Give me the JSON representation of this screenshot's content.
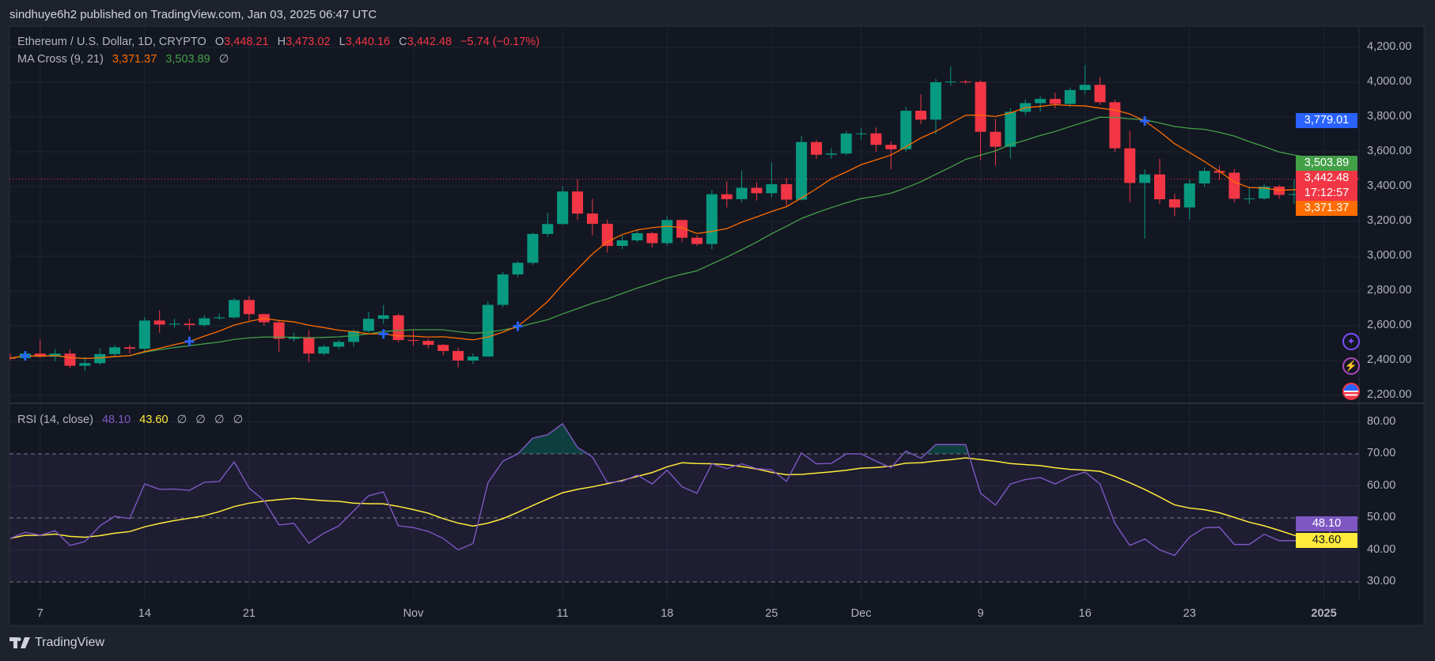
{
  "header": {
    "publisher_line": "sindhuye6h2 published on TradingView.com, Jan 03, 2025 06:47 UTC"
  },
  "legend": {
    "symbol": "Ethereum / U.S. Dollar, 1D, CRYPTO",
    "o_label": "O",
    "o": "3,448.21",
    "h_label": "H",
    "h": "3,473.02",
    "l_label": "L",
    "l": "3,440.16",
    "c_label": "C",
    "c": "3,442.48",
    "change": "−5.74 (−0.17%)",
    "ma_title": "MA Cross (9, 21)",
    "ma_fast": "3,371.37",
    "ma_slow": "3,503.89",
    "ma_extra": "∅",
    "rsi_title": "RSI (14, close)",
    "rsi_value": "48.10",
    "rsi_ma": "43.60",
    "rsi_extra": [
      "∅",
      "∅",
      "∅",
      "∅"
    ]
  },
  "badges": {
    "alert": "3,779.01",
    "ma_slow": "3,503.89",
    "last_price": "3,442.48",
    "countdown": "17:12:57",
    "ma_fast": "3,371.37",
    "rsi": "48.10",
    "rsi_ma": "43.60"
  },
  "icons": [
    "sparkle-icon",
    "lightning-icon",
    "us-flag-icon"
  ],
  "brand": {
    "name": "TradingView"
  },
  "colors": {
    "up": "#089981",
    "down": "#f23645",
    "ma_fast": "#ff6d00",
    "ma_slow": "#43a047",
    "rsi": "#7e57c2",
    "rsi_ma": "#ffeb3b",
    "alert": "#2962ff",
    "cross": "#2962ff"
  },
  "chart_data": [
    {
      "type": "candlestick",
      "ylim": [
        2200,
        4200
      ],
      "price_ticks": [
        "4,200.00",
        "4,000.00",
        "3,800.00",
        "3,600.00",
        "3,400.00",
        "3,200.00",
        "3,000.00",
        "2,800.00",
        "2,600.00",
        "2,400.00",
        "2,200.00"
      ],
      "price_tick_values": [
        4200,
        4000,
        3800,
        3600,
        3400,
        3200,
        3000,
        2800,
        2600,
        2400,
        2200
      ],
      "time_ticks": [
        {
          "label": "7",
          "date": "2024-10-07"
        },
        {
          "label": "14",
          "date": "2024-10-14"
        },
        {
          "label": "21",
          "date": "2024-10-21"
        },
        {
          "label": "Nov",
          "date": "2024-11-01"
        },
        {
          "label": "11",
          "date": "2024-11-11"
        },
        {
          "label": "18",
          "date": "2024-11-18"
        },
        {
          "label": "25",
          "date": "2024-11-25"
        },
        {
          "label": "Dec",
          "date": "2024-12-01"
        },
        {
          "label": "9",
          "date": "2024-12-09"
        },
        {
          "label": "16",
          "date": "2024-12-16"
        },
        {
          "label": "23",
          "date": "2024-12-23"
        },
        {
          "label": "2025",
          "date": "2025-01-01",
          "bold": true
        }
      ],
      "ma_periods": [
        9,
        21
      ],
      "cross_dates": [
        "2024-10-06",
        "2024-10-17",
        "2024-10-30",
        "2024-11-08",
        "2024-12-20"
      ],
      "alert_price": 3779.01,
      "last_price": 3442.48,
      "candles": [
        [
          "2024-10-05",
          2415,
          2440,
          2400,
          2414
        ],
        [
          "2024-10-06",
          2414,
          2450,
          2405,
          2440
        ],
        [
          "2024-10-07",
          2440,
          2520,
          2415,
          2422
        ],
        [
          "2024-10-08",
          2422,
          2465,
          2395,
          2440
        ],
        [
          "2024-10-09",
          2440,
          2465,
          2355,
          2370
        ],
        [
          "2024-10-10",
          2370,
          2420,
          2340,
          2385
        ],
        [
          "2024-10-11",
          2385,
          2470,
          2375,
          2437
        ],
        [
          "2024-10-12",
          2437,
          2490,
          2425,
          2476
        ],
        [
          "2024-10-13",
          2476,
          2490,
          2440,
          2468
        ],
        [
          "2024-10-14",
          2468,
          2650,
          2445,
          2630
        ],
        [
          "2024-10-15",
          2630,
          2690,
          2560,
          2607
        ],
        [
          "2024-10-16",
          2607,
          2640,
          2590,
          2612
        ],
        [
          "2024-10-17",
          2612,
          2640,
          2575,
          2604
        ],
        [
          "2024-10-18",
          2604,
          2660,
          2595,
          2643
        ],
        [
          "2024-10-19",
          2643,
          2670,
          2635,
          2648
        ],
        [
          "2024-10-20",
          2648,
          2760,
          2640,
          2748
        ],
        [
          "2024-10-21",
          2748,
          2770,
          2630,
          2667
        ],
        [
          "2024-10-22",
          2667,
          2670,
          2600,
          2620
        ],
        [
          "2024-10-23",
          2620,
          2630,
          2450,
          2525
        ],
        [
          "2024-10-24",
          2525,
          2560,
          2510,
          2535
        ],
        [
          "2024-10-25",
          2535,
          2575,
          2390,
          2440
        ],
        [
          "2024-10-26",
          2440,
          2490,
          2430,
          2480
        ],
        [
          "2024-10-27",
          2480,
          2520,
          2465,
          2507
        ],
        [
          "2024-10-28",
          2507,
          2580,
          2480,
          2570
        ],
        [
          "2024-10-29",
          2570,
          2680,
          2560,
          2640
        ],
        [
          "2024-10-30",
          2640,
          2720,
          2610,
          2660
        ],
        [
          "2024-10-31",
          2660,
          2670,
          2505,
          2518
        ],
        [
          "2024-11-01",
          2518,
          2580,
          2485,
          2513
        ],
        [
          "2024-11-02",
          2513,
          2525,
          2470,
          2490
        ],
        [
          "2024-11-03",
          2490,
          2495,
          2430,
          2455
        ],
        [
          "2024-11-04",
          2455,
          2475,
          2360,
          2400
        ],
        [
          "2024-11-05",
          2400,
          2440,
          2380,
          2423
        ],
        [
          "2024-11-06",
          2423,
          2740,
          2420,
          2720
        ],
        [
          "2024-11-07",
          2720,
          2910,
          2705,
          2895
        ],
        [
          "2024-11-08",
          2895,
          2970,
          2880,
          2962
        ],
        [
          "2024-11-09",
          2962,
          3135,
          2950,
          3128
        ],
        [
          "2024-11-10",
          3128,
          3250,
          3110,
          3185
        ],
        [
          "2024-11-11",
          3185,
          3400,
          3180,
          3372
        ],
        [
          "2024-11-12",
          3372,
          3440,
          3210,
          3245
        ],
        [
          "2024-11-13",
          3245,
          3330,
          3120,
          3186
        ],
        [
          "2024-11-14",
          3186,
          3210,
          3020,
          3059
        ],
        [
          "2024-11-15",
          3059,
          3120,
          3040,
          3091
        ],
        [
          "2024-11-16",
          3091,
          3150,
          3080,
          3132
        ],
        [
          "2024-11-17",
          3132,
          3140,
          3050,
          3075
        ],
        [
          "2024-11-18",
          3075,
          3230,
          3060,
          3208
        ],
        [
          "2024-11-19",
          3208,
          3210,
          3080,
          3106
        ],
        [
          "2024-11-20",
          3106,
          3120,
          3060,
          3070
        ],
        [
          "2024-11-21",
          3070,
          3380,
          3040,
          3356
        ],
        [
          "2024-11-22",
          3356,
          3430,
          3280,
          3328
        ],
        [
          "2024-11-23",
          3328,
          3490,
          3310,
          3393
        ],
        [
          "2024-11-24",
          3393,
          3425,
          3320,
          3362
        ],
        [
          "2024-11-25",
          3362,
          3540,
          3340,
          3414
        ],
        [
          "2024-11-26",
          3414,
          3450,
          3290,
          3325
        ],
        [
          "2024-11-27",
          3325,
          3690,
          3320,
          3656
        ],
        [
          "2024-11-28",
          3656,
          3670,
          3560,
          3583
        ],
        [
          "2024-11-29",
          3583,
          3620,
          3560,
          3590
        ],
        [
          "2024-11-30",
          3590,
          3720,
          3580,
          3705
        ],
        [
          "2024-12-01",
          3705,
          3740,
          3670,
          3706
        ],
        [
          "2024-12-02",
          3706,
          3740,
          3600,
          3640
        ],
        [
          "2024-12-03",
          3640,
          3660,
          3500,
          3615
        ],
        [
          "2024-12-04",
          3615,
          3860,
          3600,
          3836
        ],
        [
          "2024-12-05",
          3836,
          3930,
          3760,
          3785
        ],
        [
          "2024-12-06",
          3785,
          4020,
          3700,
          4000
        ],
        [
          "2024-12-07",
          4000,
          4090,
          3980,
          4004
        ],
        [
          "2024-12-08",
          4004,
          4015,
          3990,
          4002
        ],
        [
          "2024-12-09",
          4002,
          4010,
          3550,
          3715
        ],
        [
          "2024-12-10",
          3715,
          3790,
          3520,
          3629
        ],
        [
          "2024-12-11",
          3629,
          3850,
          3560,
          3830
        ],
        [
          "2024-12-12",
          3830,
          3900,
          3810,
          3880
        ],
        [
          "2024-12-13",
          3880,
          3920,
          3830,
          3904
        ],
        [
          "2024-12-14",
          3904,
          3940,
          3850,
          3875
        ],
        [
          "2024-12-15",
          3875,
          3970,
          3860,
          3955
        ],
        [
          "2024-12-16",
          3955,
          4100,
          3930,
          3985
        ],
        [
          "2024-12-17",
          3985,
          4030,
          3870,
          3885
        ],
        [
          "2024-12-18",
          3885,
          3900,
          3600,
          3620
        ],
        [
          "2024-12-19",
          3620,
          3720,
          3310,
          3421
        ],
        [
          "2024-12-20",
          3421,
          3500,
          3100,
          3470
        ],
        [
          "2024-12-21",
          3470,
          3560,
          3300,
          3327
        ],
        [
          "2024-12-22",
          3327,
          3360,
          3230,
          3280
        ],
        [
          "2024-12-23",
          3280,
          3440,
          3210,
          3418
        ],
        [
          "2024-12-24",
          3418,
          3510,
          3400,
          3490
        ],
        [
          "2024-12-25",
          3490,
          3520,
          3440,
          3480
        ],
        [
          "2024-12-26",
          3480,
          3500,
          3310,
          3330
        ],
        [
          "2024-12-27",
          3330,
          3400,
          3300,
          3332
        ],
        [
          "2024-12-28",
          3332,
          3415,
          3320,
          3400
        ],
        [
          "2024-12-29",
          3400,
          3410,
          3330,
          3352
        ],
        [
          "2024-12-30",
          3352,
          3440,
          3300,
          3357
        ],
        [
          "2024-12-31",
          3357,
          3420,
          3330,
          3334
        ],
        [
          "2025-01-01",
          3334,
          3370,
          3320,
          3353
        ],
        [
          "2025-01-02",
          3353,
          3500,
          3345,
          3448
        ],
        [
          "2025-01-03",
          3448.21,
          3473.02,
          3440.16,
          3442.48
        ]
      ]
    },
    {
      "type": "line",
      "ylim": [
        30,
        80
      ],
      "rsi_ticks": [
        "80.00",
        "70.00",
        "60.00",
        "50.00",
        "40.00",
        "30.00"
      ],
      "rsi_tick_values": [
        80,
        70,
        60,
        50,
        40,
        30
      ],
      "bands": [
        30,
        50,
        70
      ],
      "ma_period": 14,
      "rsi": [
        43.6,
        45.5,
        44.6,
        46,
        41.4,
        42.6,
        47.5,
        50.5,
        49.8,
        60.6,
        58.9,
        59,
        58.6,
        61.1,
        61.4,
        67.5,
        59.3,
        55.4,
        47.8,
        48.3,
        42.1,
        45.2,
        47.5,
        52.2,
        56.9,
        58.1,
        47.5,
        47,
        45.8,
        43.6,
        40,
        42,
        61,
        67.7,
        70,
        74.9,
        76,
        79.4,
        72,
        69,
        61,
        61.4,
        63.4,
        60.6,
        64.9,
        59.7,
        57.7,
        66.9,
        65.4,
        66.9,
        65.4,
        65,
        61.4,
        70.3,
        66.9,
        67,
        70,
        70,
        67.7,
        65.7,
        70.9,
        68.6,
        72.9,
        72.9,
        72.9,
        57.7,
        54,
        60.6,
        62,
        62.6,
        60.6,
        62.9,
        64.3,
        60.6,
        48.3,
        41.4,
        43.4,
        40,
        38.3,
        44,
        46.9,
        47.1,
        41.7,
        41.7,
        44.9,
        42.9,
        42.9,
        42.3,
        43.4,
        48.6,
        48.1
      ]
    }
  ]
}
